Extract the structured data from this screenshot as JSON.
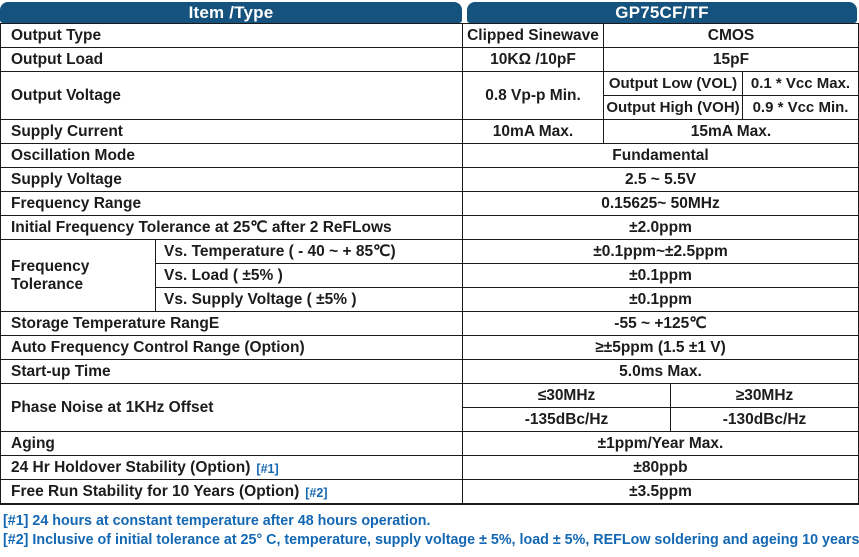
{
  "colors": {
    "header_bg": "#15527d",
    "header_text": "#ffffff",
    "body_text": "#1c1c1c",
    "border": "#1a1a1a",
    "footnote_blue": "#1468b3"
  },
  "header": {
    "item_col": "Item /Type",
    "product_col": "GP75CF/TF"
  },
  "rows": {
    "output_type": {
      "label": "Output Type",
      "clipped": "Clipped Sinewave",
      "cmos": "CMOS"
    },
    "output_load": {
      "label": "Output Load",
      "clipped": "10KΩ /10pF",
      "cmos": "15pF"
    },
    "output_voltage": {
      "label": "Output Voltage",
      "clipped": "0.8 Vp-p Min.",
      "vol_label": "Output Low (VOL)",
      "vol_value": "0.1 * Vcc Max.",
      "voh_label": "Output High (VOH)",
      "voh_value": "0.9 * Vcc Min."
    },
    "supply_current": {
      "label": "Supply Current",
      "clipped": "10mA Max.",
      "cmos": "15mA Max."
    },
    "oscillation_mode": {
      "label": "Oscillation Mode",
      "value": "Fundamental"
    },
    "supply_voltage": {
      "label": "Supply Voltage",
      "value": "2.5 ~ 5.5V"
    },
    "frequency_range": {
      "label": "Frequency Range",
      "value": "0.15625~ 50MHz"
    },
    "initial_tolerance": {
      "label": "Initial Frequency Tolerance at 25℃ after 2 ReFLows",
      "value": "±2.0ppm"
    },
    "frequency_tolerance": {
      "label": "Frequency Tolerance",
      "vs_temperature": {
        "label": "Vs. Temperature ( - 40 ~ + 85℃)",
        "value": "±0.1ppm~±2.5ppm"
      },
      "vs_load": {
        "label": "Vs. Load ( ±5% )",
        "value": "±0.1ppm"
      },
      "vs_supply_voltage": {
        "label": "Vs. Supply Voltage ( ±5% )",
        "value": "±0.1ppm"
      }
    },
    "storage_temperature": {
      "label": "Storage Temperature RangE",
      "value": "-55 ~ +125℃"
    },
    "afc_range": {
      "label": "Auto Frequency Control Range (Option)",
      "value": "≥±5ppm (1.5 ±1 V)"
    },
    "startup_time": {
      "label": "Start-up Time",
      "value": "5.0ms Max."
    },
    "phase_noise": {
      "label": "Phase Noise at 1KHz Offset",
      "low_header": "≤30MHz",
      "high_header": "≥30MHz",
      "low_value": "-135dBc/Hz",
      "high_value": "-130dBc/Hz"
    },
    "aging": {
      "label": "Aging",
      "value": "±1ppm/Year Max."
    },
    "holdover": {
      "label": "24 Hr Holdover Stability (Option)",
      "tag": "[#1]",
      "value": "±80ppb"
    },
    "free_run": {
      "label": "Free Run Stability for 10 Years (Option)",
      "tag": "[#2]",
      "value": "±3.5ppm"
    }
  },
  "footnotes": [
    "[#1] 24 hours at constant temperature after 48 hours operation.",
    "[#2] Inclusive of initial tolerance at 25° C, temperature, supply voltage ± 5%, load ± 5%, REFLow soldering and ageing 10 years."
  ]
}
